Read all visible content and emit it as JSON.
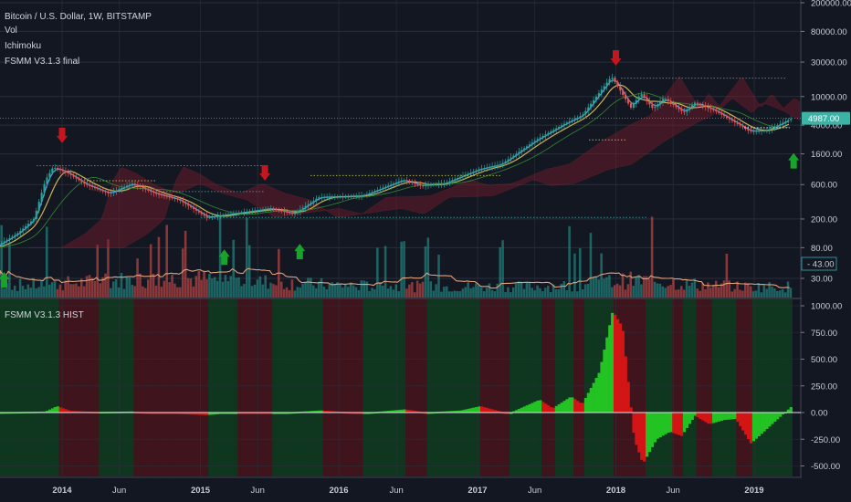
{
  "header": {
    "symbol_title": "Bitcoin / U.S. Dollar, 1W, BITSTAMP",
    "indicators": [
      "Vol",
      "Ichimoku",
      "FSMM V3.1.3 final"
    ]
  },
  "colors": {
    "background": "#131722",
    "grid": "#2a2e39",
    "candle_up": "#26a69a",
    "candle_down": "#ef5350",
    "hist_up": "#22c322",
    "hist_down": "#d41515",
    "bg_green": "#0f3a1f",
    "bg_red": "#45141c",
    "ma_fast": "#5b9bd5",
    "ma_slow": "#c9b458",
    "vol_ma": "#e0a27c",
    "price_label": "#3bb3a7",
    "vol_label": "#2e8f9a",
    "arrow_up": "#1aa32c",
    "arrow_down": "#c4161c"
  },
  "chart_data": [
    {
      "type": "candlestick",
      "name": "price-pane",
      "scale": "log",
      "y_ticks": [
        "200000.00",
        "80000.00",
        "30000.00",
        "10000.00",
        "4000.00",
        "1600.00",
        "600.00",
        "200.00",
        "80.00",
        "30.00"
      ],
      "y_tick_values": [
        200000,
        80000,
        30000,
        10000,
        4000,
        1600,
        600,
        200,
        80,
        30
      ],
      "ylim": [
        20,
        250000
      ],
      "last_price_label": "4987.00",
      "last_price": 4987,
      "price_path": [
        [
          "2013-07-01",
          80
        ],
        [
          "2013-09-01",
          125
        ],
        [
          "2013-10-15",
          200
        ],
        [
          "2013-11-15",
          700
        ],
        [
          "2013-12-05",
          1050
        ],
        [
          "2014-01-15",
          850
        ],
        [
          "2014-03-01",
          600
        ],
        [
          "2014-05-01",
          450
        ],
        [
          "2014-07-01",
          620
        ],
        [
          "2014-09-01",
          450
        ],
        [
          "2014-11-01",
          370
        ],
        [
          "2015-01-15",
          210
        ],
        [
          "2015-04-01",
          240
        ],
        [
          "2015-07-01",
          280
        ],
        [
          "2015-09-01",
          235
        ],
        [
          "2015-11-05",
          400
        ],
        [
          "2016-01-15",
          410
        ],
        [
          "2016-03-01",
          420
        ],
        [
          "2016-06-15",
          700
        ],
        [
          "2016-08-01",
          580
        ],
        [
          "2016-10-01",
          620
        ],
        [
          "2017-01-01",
          980
        ],
        [
          "2017-03-01",
          1150
        ],
        [
          "2017-06-01",
          2500
        ],
        [
          "2017-08-15",
          4200
        ],
        [
          "2017-10-01",
          5500
        ],
        [
          "2017-12-17",
          19000
        ],
        [
          "2018-02-06",
          7000
        ],
        [
          "2018-03-05",
          11000
        ],
        [
          "2018-04-05",
          6800
        ],
        [
          "2018-05-05",
          9500
        ],
        [
          "2018-06-25",
          6000
        ],
        [
          "2018-07-25",
          8200
        ],
        [
          "2018-09-15",
          6400
        ],
        [
          "2018-11-20",
          4000
        ],
        [
          "2018-12-15",
          3300
        ],
        [
          "2019-02-01",
          3400
        ],
        [
          "2019-04-07",
          4987
        ]
      ],
      "signals": [
        {
          "date": "2013-08-01",
          "direction": "up"
        },
        {
          "date": "2014-01-01",
          "direction": "down"
        },
        {
          "date": "2015-03-05",
          "direction": "up"
        },
        {
          "date": "2015-06-20",
          "direction": "down"
        },
        {
          "date": "2015-09-20",
          "direction": "up"
        },
        {
          "date": "2018-01-01",
          "direction": "down"
        },
        {
          "date": "2019-04-15",
          "direction": "up"
        }
      ]
    },
    {
      "type": "bar",
      "name": "volume-pane",
      "last_value_label": "43.00",
      "last_value": 43
    },
    {
      "type": "bar",
      "name": "histogram-pane",
      "title": "FSMM V3.1.3 HIST",
      "y_ticks": [
        "1000.00",
        "750.00",
        "500.00",
        "250.00",
        "0.00",
        "-250.00",
        "-500.00"
      ],
      "y_tick_values": [
        1000,
        750,
        500,
        250,
        0,
        -250,
        -500
      ],
      "ylim": [
        -570,
        1060
      ],
      "hist_path": [
        [
          "2013-07-01",
          0
        ],
        [
          "2013-11-15",
          10
        ],
        [
          "2013-12-15",
          60
        ],
        [
          "2014-01-20",
          15
        ],
        [
          "2014-04-01",
          5
        ],
        [
          "2014-07-01",
          10
        ],
        [
          "2014-10-01",
          -10
        ],
        [
          "2015-01-15",
          -25
        ],
        [
          "2015-04-01",
          0
        ],
        [
          "2015-07-01",
          -10
        ],
        [
          "2015-11-10",
          20
        ],
        [
          "2016-03-01",
          -5
        ],
        [
          "2016-06-20",
          30
        ],
        [
          "2016-08-15",
          0
        ],
        [
          "2016-11-15",
          20
        ],
        [
          "2017-01-05",
          60
        ],
        [
          "2017-03-20",
          -10
        ],
        [
          "2017-06-10",
          120
        ],
        [
          "2017-07-15",
          40
        ],
        [
          "2017-09-01",
          150
        ],
        [
          "2017-10-01",
          80
        ],
        [
          "2017-11-15",
          380
        ],
        [
          "2017-12-20",
          950
        ],
        [
          "2018-01-15",
          800
        ],
        [
          "2018-02-15",
          -250
        ],
        [
          "2018-03-10",
          -480
        ],
        [
          "2018-04-15",
          -250
        ],
        [
          "2018-05-20",
          -180
        ],
        [
          "2018-06-20",
          -220
        ],
        [
          "2018-07-25",
          -30
        ],
        [
          "2018-09-01",
          -110
        ],
        [
          "2018-10-10",
          -70
        ],
        [
          "2018-11-10",
          -60
        ],
        [
          "2018-12-20",
          -290
        ],
        [
          "2019-02-01",
          -150
        ],
        [
          "2019-04-07",
          60
        ]
      ]
    }
  ],
  "x_axis": {
    "labels": [
      "2014",
      "Jun",
      "2015",
      "Jun",
      "2016",
      "Jun",
      "2017",
      "Jun",
      "2018",
      "Jun",
      "2019"
    ],
    "dates": [
      "2014-01-01",
      "2014-06-01",
      "2015-01-01",
      "2015-06-01",
      "2016-01-01",
      "2016-06-01",
      "2017-01-01",
      "2017-06-01",
      "2018-01-01",
      "2018-06-01",
      "2019-01-01"
    ]
  }
}
